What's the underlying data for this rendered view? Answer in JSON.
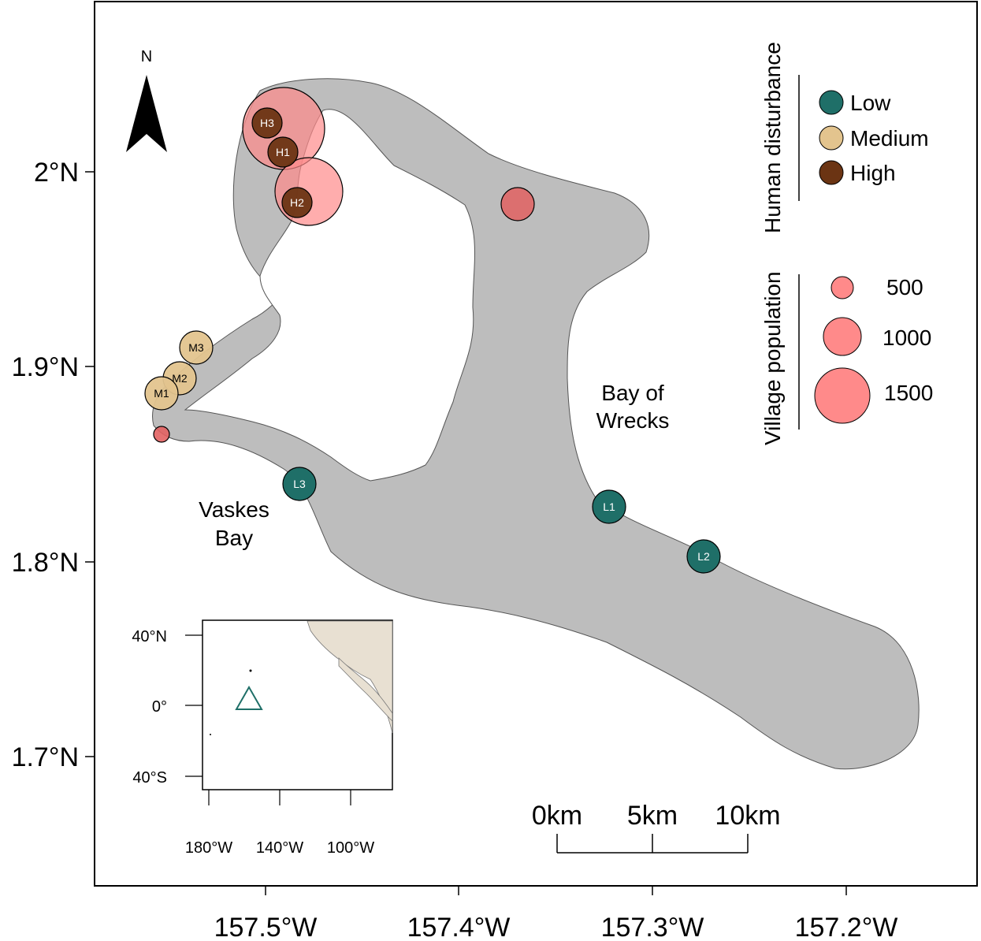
{
  "north_arrow": {
    "label": "N"
  },
  "axes": {
    "x_ticks": [
      "157.5°W",
      "157.4°W",
      "157.3°W",
      "157.2°W"
    ],
    "y_ticks": [
      "2°N",
      "1.9°N",
      "1.8°N",
      "1.7°N"
    ]
  },
  "places": {
    "bay_of_wrecks_line1": "Bay of",
    "bay_of_wrecks_line2": "Wrecks",
    "vaskes_bay_line1": "Vaskes",
    "vaskes_bay_line2": "Bay"
  },
  "sites": [
    {
      "id": "H3",
      "level": "High"
    },
    {
      "id": "H1",
      "level": "High"
    },
    {
      "id": "H2",
      "level": "High"
    },
    {
      "id": "M3",
      "level": "Medium"
    },
    {
      "id": "M2",
      "level": "Medium"
    },
    {
      "id": "M1",
      "level": "Medium"
    },
    {
      "id": "L3",
      "level": "Low"
    },
    {
      "id": "L1",
      "level": "Low"
    },
    {
      "id": "L2",
      "level": "Low"
    }
  ],
  "legend_disturbance": {
    "title": "Human disturbance",
    "items": [
      {
        "label": "Low",
        "color": "#1f6f68"
      },
      {
        "label": "Medium",
        "color": "#e3c48e"
      },
      {
        "label": "High",
        "color": "#6b3413"
      }
    ]
  },
  "legend_population": {
    "title": "Village population",
    "items": [
      {
        "label": "500",
        "value": 500
      },
      {
        "label": "1000",
        "value": 1000
      },
      {
        "label": "1500",
        "value": 1500
      }
    ],
    "color": "#ff8a8a"
  },
  "scale_bar": {
    "labels": [
      "0km",
      "5km",
      "10km"
    ]
  },
  "inset": {
    "y_ticks": [
      "40°N",
      "0°",
      "40°S"
    ],
    "x_ticks": [
      "180°W",
      "140°W",
      "100°W"
    ]
  },
  "colors": {
    "land": "#bdbdbd",
    "inset_land": "#e8e0d2",
    "marker_triangle": "#1f6f68"
  }
}
